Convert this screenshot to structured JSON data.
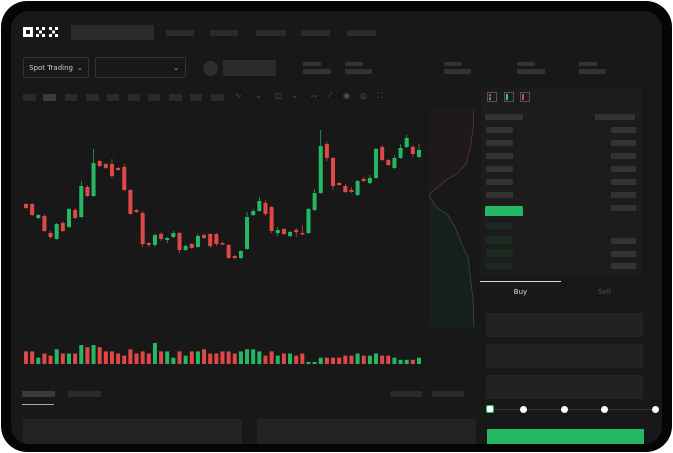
{
  "header": {
    "logo": "OKX"
  },
  "controls": {
    "market_type": "Spot Trading",
    "pair_select": ""
  },
  "trade": {
    "tabs": [
      {
        "label": "Buy",
        "active": true
      },
      {
        "label": "Sell",
        "active": false
      }
    ]
  },
  "orderbook": {
    "view_icons": [
      "orderbook-both-icon",
      "orderbook-bids-icon",
      "orderbook-asks-icon"
    ]
  },
  "colors": {
    "up": "#25b864",
    "down": "#e04848",
    "background": "#181818",
    "accent": "#25b864"
  },
  "chart_data": {
    "type": "candlestick",
    "candles": [
      [
        57,
        58,
        52,
        53
      ],
      [
        57,
        58,
        45,
        46
      ],
      [
        43,
        47,
        42,
        46
      ],
      [
        45,
        47,
        29,
        30
      ],
      [
        28,
        30,
        22,
        24
      ],
      [
        22,
        38,
        21,
        37
      ],
      [
        38,
        40,
        29,
        30
      ],
      [
        34,
        53,
        33,
        52
      ],
      [
        51,
        53,
        42,
        43
      ],
      [
        44,
        80,
        43,
        75
      ],
      [
        74,
        76,
        64,
        65
      ],
      [
        65,
        112,
        64,
        98
      ],
      [
        100,
        101,
        94,
        95
      ],
      [
        97,
        98,
        92,
        93
      ],
      [
        97,
        102,
        83,
        85
      ],
      [
        93,
        94,
        90,
        91
      ],
      [
        94,
        97,
        70,
        71
      ],
      [
        71,
        72,
        46,
        47
      ],
      [
        51,
        52,
        48,
        49
      ],
      [
        48,
        50,
        14,
        17
      ],
      [
        18,
        19,
        14,
        16
      ],
      [
        16,
        27,
        14,
        26
      ],
      [
        27,
        29,
        20,
        22
      ],
      [
        21,
        24,
        18,
        23
      ],
      [
        24,
        30,
        23,
        28
      ],
      [
        28,
        29,
        8,
        11
      ],
      [
        11,
        16,
        10,
        15
      ],
      [
        17,
        18,
        12,
        13
      ],
      [
        14,
        27,
        13,
        25
      ],
      [
        26,
        27,
        22,
        23
      ],
      [
        27,
        28,
        13,
        15
      ],
      [
        27,
        28,
        15,
        17
      ],
      [
        18,
        19,
        16,
        17
      ],
      [
        16,
        17,
        2,
        3
      ],
      [
        5,
        6,
        2,
        3
      ],
      [
        3,
        11,
        2,
        10
      ],
      [
        12,
        49,
        11,
        44
      ],
      [
        46,
        52,
        45,
        50
      ],
      [
        50,
        64,
        49,
        60
      ],
      [
        58,
        61,
        45,
        47
      ],
      [
        54,
        55,
        28,
        30
      ],
      [
        28,
        34,
        25,
        31
      ],
      [
        32,
        33,
        26,
        27
      ],
      [
        25,
        30,
        24,
        29
      ],
      [
        31,
        33,
        24,
        29
      ],
      [
        28,
        36,
        26,
        27
      ],
      [
        28,
        53,
        27,
        52
      ],
      [
        51,
        72,
        50,
        68
      ],
      [
        68,
        131,
        67,
        115
      ],
      [
        117,
        120,
        100,
        103
      ],
      [
        103,
        104,
        71,
        75
      ],
      [
        78,
        79,
        75,
        76
      ],
      [
        75,
        77,
        68,
        69
      ],
      [
        71,
        74,
        68,
        69
      ],
      [
        66,
        81,
        65,
        80
      ],
      [
        82,
        84,
        79,
        80
      ],
      [
        78,
        86,
        77,
        83
      ],
      [
        83,
        113,
        82,
        112
      ],
      [
        114,
        116,
        100,
        101
      ],
      [
        101,
        102,
        95,
        96
      ],
      [
        93,
        106,
        92,
        103
      ],
      [
        103,
        117,
        102,
        113
      ],
      [
        114,
        126,
        113,
        123
      ],
      [
        114,
        116,
        104,
        107
      ],
      [
        104,
        117,
        103,
        111
      ]
    ],
    "volume": [
      6,
      6,
      3,
      5,
      4,
      7,
      5,
      5,
      5,
      9,
      8,
      9,
      8,
      6,
      6,
      5,
      4,
      7,
      5,
      6,
      5,
      10,
      6,
      6,
      3,
      6,
      4,
      6,
      6,
      7,
      5,
      5,
      6,
      6,
      5,
      6,
      7,
      7,
      6,
      4,
      6,
      4,
      5,
      5,
      4,
      5,
      1,
      1,
      3,
      3,
      3,
      3,
      4,
      4,
      5,
      4,
      4,
      5,
      4,
      4,
      3,
      2,
      2,
      2,
      3
    ],
    "gridlines": true
  }
}
